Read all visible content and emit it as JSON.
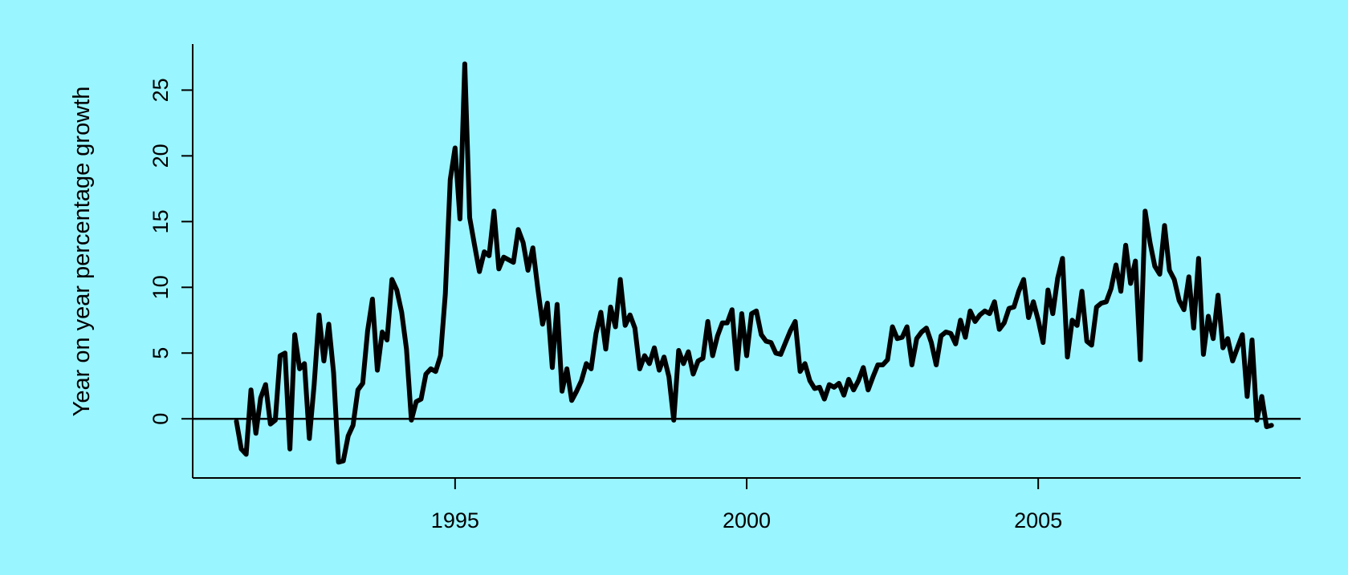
{
  "colors": {
    "background": "#99f5ff",
    "line": "#000000"
  },
  "chart_data": {
    "type": "line",
    "title": "",
    "xlabel": "",
    "ylabel": "Year on year percentage growth",
    "xlim": [
      1990.5,
      2009.5
    ],
    "ylim": [
      -4.5,
      28.5
    ],
    "x_ticks": [
      1995,
      2000,
      2005
    ],
    "x_tick_labels": [
      "1995",
      "2000",
      "2005"
    ],
    "y_ticks": [
      0,
      5,
      10,
      15,
      20,
      25
    ],
    "y_tick_labels": [
      "0",
      "5",
      "10",
      "15",
      "20",
      "25"
    ],
    "reference_line_y": 0,
    "grid": false,
    "legend": "none",
    "series": [
      {
        "x_start": 1991.25,
        "x_step": 0.0833333,
        "values": [
          -0.2,
          -2.3,
          -2.7,
          2.2,
          -1.1,
          1.6,
          2.6,
          -0.4,
          -0.1,
          4.8,
          5.0,
          -2.3,
          6.4,
          3.8,
          4.2,
          -1.5,
          2.6,
          7.9,
          4.4,
          7.2,
          3.5,
          -3.3,
          -3.2,
          -1.3,
          -0.5,
          2.2,
          2.7,
          6.7,
          9.1,
          3.7,
          6.6,
          6.0,
          10.6,
          9.8,
          8.1,
          5.3,
          -0.1,
          1.3,
          1.5,
          3.4,
          3.8,
          3.6,
          4.8,
          9.5,
          18.2,
          20.6,
          15.2,
          27.0,
          15.3,
          13.2,
          11.2,
          12.7,
          12.4,
          15.8,
          11.4,
          12.3,
          12.1,
          11.9,
          14.4,
          13.4,
          11.3,
          13.0,
          10.0,
          7.2,
          8.8,
          3.9,
          8.7,
          2.1,
          3.8,
          1.4,
          2.1,
          2.9,
          4.2,
          3.8,
          6.5,
          8.1,
          5.3,
          8.5,
          7.0,
          10.6,
          7.1,
          7.9,
          6.9,
          3.8,
          4.8,
          4.2,
          5.4,
          3.7,
          4.7,
          3.2,
          -0.1,
          5.2,
          4.2,
          5.1,
          3.4,
          4.4,
          4.6,
          7.4,
          4.8,
          6.3,
          7.3,
          7.3,
          8.3,
          3.8,
          8.0,
          4.8,
          8.0,
          8.2,
          6.4,
          5.9,
          5.8,
          5.0,
          4.9,
          5.8,
          6.7,
          7.4,
          3.6,
          4.2,
          2.9,
          2.3,
          2.4,
          1.5,
          2.6,
          2.4,
          2.7,
          1.8,
          3.0,
          2.2,
          2.9,
          3.9,
          2.2,
          3.2,
          4.1,
          4.1,
          4.5,
          7.0,
          6.1,
          6.2,
          7.0,
          4.1,
          6.1,
          6.6,
          6.9,
          5.8,
          4.1,
          6.3,
          6.6,
          6.5,
          5.7,
          7.5,
          6.2,
          8.2,
          7.4,
          7.9,
          8.2,
          8.0,
          8.9,
          6.8,
          7.3,
          8.4,
          8.5,
          9.7,
          10.6,
          7.7,
          8.9,
          7.5,
          5.8,
          9.8,
          8.0,
          10.7,
          12.2,
          4.7,
          7.5,
          7.1,
          9.7,
          5.9,
          5.6,
          8.5,
          8.8,
          8.9,
          9.9,
          11.7,
          9.7,
          13.2,
          10.3,
          12.0,
          4.5,
          15.8,
          13.4,
          11.6,
          11.0,
          14.7,
          11.3,
          10.6,
          9.0,
          8.3,
          10.8,
          6.9,
          12.2,
          4.9,
          7.8,
          6.1,
          9.4,
          5.4,
          6.1,
          4.4,
          5.4,
          6.4,
          1.7,
          6.0,
          -0.1,
          1.7,
          -0.6,
          -0.5
        ]
      }
    ]
  }
}
